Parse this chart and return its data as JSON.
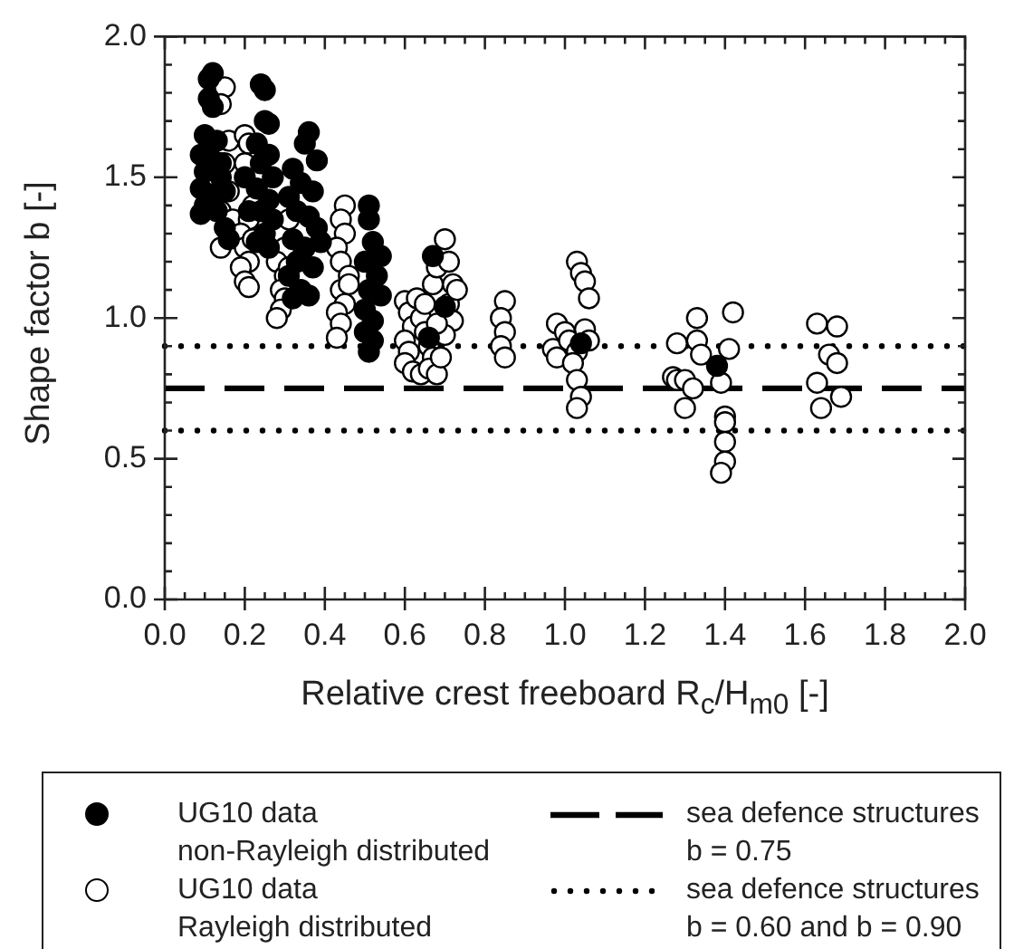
{
  "chart_data": {
    "type": "scatter",
    "xlabel": "Relative crest freeboard R$_{c}$/H$_{m0}$ [-]",
    "ylabel": "Shape factor b [-]",
    "xlim": [
      0,
      2
    ],
    "ylim": [
      0,
      2
    ],
    "xticks": [
      {
        "value": 0,
        "label": "0.0"
      },
      {
        "value": 0.05,
        "label": null
      },
      {
        "value": 0.1,
        "label": null
      },
      {
        "value": 0.15,
        "label": null
      },
      {
        "value": 0.2,
        "label": "0.2"
      },
      {
        "value": 0.25,
        "label": null
      },
      {
        "value": 0.3,
        "label": null
      },
      {
        "value": 0.35,
        "label": null
      },
      {
        "value": 0.4,
        "label": "0.4"
      },
      {
        "value": 0.45,
        "label": null
      },
      {
        "value": 0.5,
        "label": null
      },
      {
        "value": 0.55,
        "label": null
      },
      {
        "value": 0.6,
        "label": "0.6"
      },
      {
        "value": 0.65,
        "label": null
      },
      {
        "value": 0.7,
        "label": null
      },
      {
        "value": 0.75,
        "label": null
      },
      {
        "value": 0.8,
        "label": "0.8"
      },
      {
        "value": 0.85,
        "label": null
      },
      {
        "value": 0.9,
        "label": null
      },
      {
        "value": 0.95,
        "label": null
      },
      {
        "value": 1,
        "label": "1.0"
      },
      {
        "value": 1.05,
        "label": null
      },
      {
        "value": 1.1,
        "label": null
      },
      {
        "value": 1.15,
        "label": null
      },
      {
        "value": 1.2,
        "label": "1.2"
      },
      {
        "value": 1.25,
        "label": null
      },
      {
        "value": 1.3,
        "label": null
      },
      {
        "value": 1.35,
        "label": null
      },
      {
        "value": 1.4,
        "label": "1.4"
      },
      {
        "value": 1.45,
        "label": null
      },
      {
        "value": 1.5,
        "label": null
      },
      {
        "value": 1.55,
        "label": null
      },
      {
        "value": 1.6,
        "label": "1.6"
      },
      {
        "value": 1.65,
        "label": null
      },
      {
        "value": 1.7,
        "label": null
      },
      {
        "value": 1.75,
        "label": null
      },
      {
        "value": 1.8,
        "label": "1.8"
      },
      {
        "value": 1.85,
        "label": null
      },
      {
        "value": 1.9,
        "label": null
      },
      {
        "value": 1.95,
        "label": null
      },
      {
        "value": 2,
        "label": "2.0"
      }
    ],
    "yticks": [
      {
        "value": 0,
        "label": "0.0"
      },
      {
        "value": 0.1,
        "label": null
      },
      {
        "value": 0.2,
        "label": null
      },
      {
        "value": 0.3,
        "label": null
      },
      {
        "value": 0.4,
        "label": null
      },
      {
        "value": 0.5,
        "label": "0.5"
      },
      {
        "value": 0.6,
        "label": null
      },
      {
        "value": 0.7,
        "label": null
      },
      {
        "value": 0.8,
        "label": null
      },
      {
        "value": 0.9,
        "label": null
      },
      {
        "value": 1,
        "label": "1.0"
      },
      {
        "value": 1.1,
        "label": null
      },
      {
        "value": 1.2,
        "label": null
      },
      {
        "value": 1.3,
        "label": null
      },
      {
        "value": 1.4,
        "label": null
      },
      {
        "value": 1.5,
        "label": "1.5"
      },
      {
        "value": 1.6,
        "label": null
      },
      {
        "value": 1.7,
        "label": null
      },
      {
        "value": 1.8,
        "label": null
      },
      {
        "value": 1.9,
        "label": null
      },
      {
        "value": 2,
        "label": "2.0"
      }
    ],
    "grid": false,
    "legend": "bottom",
    "marker": "circle",
    "series": [
      {
        "name": "UG10 data\nnon-Rayleigh distributed",
        "color": "#000000",
        "x": [
          0.12,
          0.11,
          0.11,
          0.12,
          0.1,
          0.13,
          0.09,
          0.12,
          0.1,
          0.14,
          0.09,
          0.12,
          0.1,
          0.13,
          0.09,
          0.15,
          0.14,
          0.15,
          0.16,
          0.24,
          0.25,
          0.25,
          0.26,
          0.23,
          0.26,
          0.24,
          0.27,
          0.23,
          0.26,
          0.24,
          0.27,
          0.25,
          0.23,
          0.26,
          0.2,
          0.21,
          0.36,
          0.35,
          0.38,
          0.32,
          0.34,
          0.37,
          0.31,
          0.33,
          0.36,
          0.38,
          0.32,
          0.35,
          0.33,
          0.37,
          0.31,
          0.34,
          0.32,
          0.36,
          0.39,
          0.51,
          0.51,
          0.52,
          0.54,
          0.5,
          0.53,
          0.51,
          0.54,
          0.5,
          0.52,
          0.5,
          0.52,
          0.51,
          0.67,
          0.7,
          0.66,
          1.04,
          1.38
        ],
        "values": [
          1.87,
          1.85,
          1.78,
          1.75,
          1.65,
          1.63,
          1.58,
          1.56,
          1.52,
          1.5,
          1.46,
          1.44,
          1.4,
          1.38,
          1.37,
          1.45,
          1.55,
          1.32,
          1.28,
          1.83,
          1.81,
          1.7,
          1.69,
          1.62,
          1.58,
          1.55,
          1.5,
          1.46,
          1.42,
          1.38,
          1.35,
          1.3,
          1.27,
          1.25,
          1.5,
          1.38,
          1.66,
          1.62,
          1.56,
          1.53,
          1.48,
          1.45,
          1.43,
          1.38,
          1.36,
          1.32,
          1.28,
          1.25,
          1.2,
          1.18,
          1.15,
          1.1,
          1.07,
          1.08,
          1.27,
          1.4,
          1.35,
          1.27,
          1.22,
          1.2,
          1.15,
          1.1,
          1.08,
          1.03,
          0.99,
          0.95,
          0.92,
          0.88,
          1.22,
          1.04,
          0.93,
          0.91,
          0.83
        ]
      },
      {
        "name": "UG10 data\nRayleigh distributed",
        "color": "#ffffff",
        "x": [
          0.15,
          0.14,
          0.16,
          0.15,
          0.16,
          0.14,
          0.14,
          0.17,
          0.2,
          0.21,
          0.2,
          0.22,
          0.21,
          0.19,
          0.2,
          0.21,
          0.19,
          0.2,
          0.21,
          0.22,
          0.31,
          0.3,
          0.28,
          0.3,
          0.29,
          0.3,
          0.29,
          0.28,
          0.31,
          0.45,
          0.44,
          0.45,
          0.43,
          0.44,
          0.46,
          0.44,
          0.45,
          0.43,
          0.44,
          0.43,
          0.46,
          0.6,
          0.61,
          0.62,
          0.6,
          0.61,
          0.6,
          0.62,
          0.64,
          0.63,
          0.64,
          0.65,
          0.66,
          0.67,
          0.66,
          0.68,
          0.67,
          0.68,
          0.7,
          0.71,
          0.72,
          0.71,
          0.72,
          0.73,
          0.7,
          0.69,
          0.68,
          0.65,
          0.85,
          0.84,
          0.85,
          0.84,
          0.85,
          1.03,
          1.04,
          1.05,
          1.06,
          0.98,
          1.0,
          0.97,
          0.98,
          1.01,
          1.03,
          1.05,
          1.02,
          1.03,
          1.04,
          1.03,
          1.06,
          1.28,
          1.33,
          1.33,
          1.34,
          1.27,
          1.28,
          1.3,
          1.32,
          1.3,
          1.42,
          1.41,
          1.39,
          1.4,
          1.4,
          1.4,
          1.4,
          1.39,
          1.63,
          1.68,
          1.66,
          1.68,
          1.63,
          1.69,
          1.64
        ],
        "values": [
          1.82,
          1.76,
          1.63,
          1.55,
          1.45,
          1.38,
          1.25,
          1.35,
          1.65,
          1.62,
          1.55,
          1.4,
          1.35,
          1.3,
          1.25,
          1.2,
          1.18,
          1.13,
          1.11,
          1.28,
          1.35,
          1.25,
          1.2,
          1.15,
          1.1,
          1.07,
          1.03,
          1.0,
          1.18,
          1.4,
          1.35,
          1.3,
          1.25,
          1.2,
          1.15,
          1.1,
          1.05,
          1.02,
          0.98,
          0.93,
          1.12,
          1.06,
          1.02,
          0.97,
          0.92,
          0.88,
          0.84,
          0.81,
          0.8,
          1.07,
          1.0,
          0.95,
          0.9,
          0.86,
          0.82,
          0.8,
          1.12,
          1.18,
          1.28,
          1.2,
          1.12,
          1.05,
          0.99,
          1.1,
          0.94,
          0.86,
          0.98,
          1.05,
          1.06,
          1.0,
          0.95,
          0.9,
          0.86,
          1.2,
          1.16,
          1.13,
          1.07,
          0.98,
          0.95,
          0.89,
          0.86,
          0.92,
          0.88,
          0.96,
          0.84,
          0.78,
          0.72,
          0.68,
          0.92,
          0.91,
          1.0,
          0.92,
          0.87,
          0.79,
          0.78,
          0.78,
          0.75,
          0.68,
          1.02,
          0.89,
          0.77,
          0.65,
          0.63,
          0.56,
          0.49,
          0.45,
          0.98,
          0.97,
          0.87,
          0.84,
          0.77,
          0.72,
          0.68
        ]
      }
    ],
    "ref_lines": [
      {
        "axis": "y",
        "value": 0.75,
        "label": "sea defence structures\nb = 0.75",
        "color": "#000000",
        "line_style": "dashed"
      },
      {
        "axis": "y",
        "value": 0.6,
        "label": "sea defence structures\nb = 0.60 and b = 0.90",
        "color": "#000000",
        "line_style": "dotted"
      },
      {
        "axis": "y",
        "value": 0.9,
        "color": "#000000",
        "line_style": "dotted"
      }
    ]
  }
}
